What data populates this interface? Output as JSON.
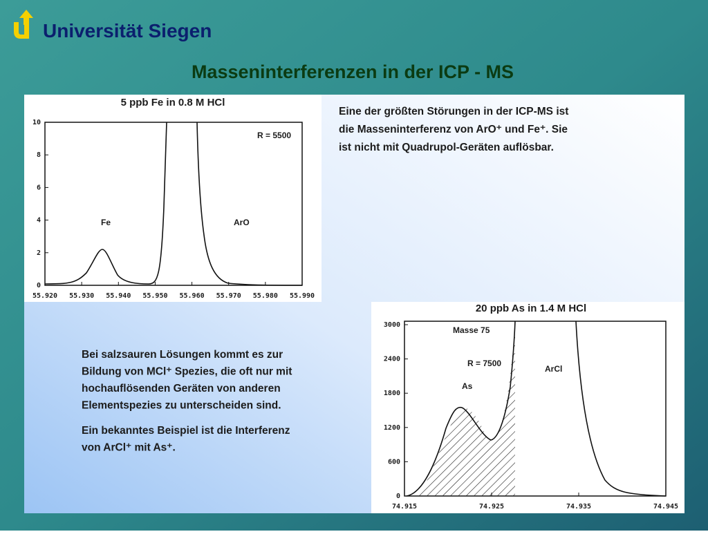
{
  "header": {
    "institution": "Universität Siegen",
    "title": "Masseninterferenzen in der ICP - MS"
  },
  "figure_fe": {
    "title": "5 ppb Fe in 0.8 M HCl",
    "resolution": "R = 5500",
    "peak_labels": [
      "Fe",
      "ArO"
    ],
    "y_tick_labels": [
      "0",
      "2",
      "4",
      "6",
      "8",
      "10"
    ],
    "x_tick_labels": [
      "55.920",
      "55.930",
      "55.940",
      "55.950",
      "55.960",
      "55.970",
      "55.980",
      "55.990"
    ]
  },
  "text_top": [
    "Eine der größten Störungen in der ICP-MS ist",
    "die Masseninterferenz von ArO⁺ und Fe⁺. Sie",
    "ist nicht mit Quadrupol-Geräten auflösbar."
  ],
  "text_left": {
    "paragraph1": [
      "Bei salzsauren Lösungen kommt es zur",
      "Bildung von MCl⁺ Spezies, die oft nur mit",
      "hochauflösenden Geräten von anderen",
      "Elementspezies zu unterscheiden sind."
    ],
    "paragraph2": [
      "Ein bekanntes Beispiel ist die Interferenz",
      "von ArCl⁺ mit As⁺."
    ]
  },
  "figure_as": {
    "title": "20 ppb As in 1.4 M HCl",
    "mass": "Masse 75",
    "resolution": "R = 7500",
    "peak_labels": [
      "As",
      "ArCl"
    ],
    "y_tick_labels": [
      "0",
      "600",
      "1200",
      "1800",
      "2400",
      "3000"
    ],
    "x_tick_labels": [
      "74.915",
      "74.925",
      "74.935",
      "74.945"
    ]
  }
}
